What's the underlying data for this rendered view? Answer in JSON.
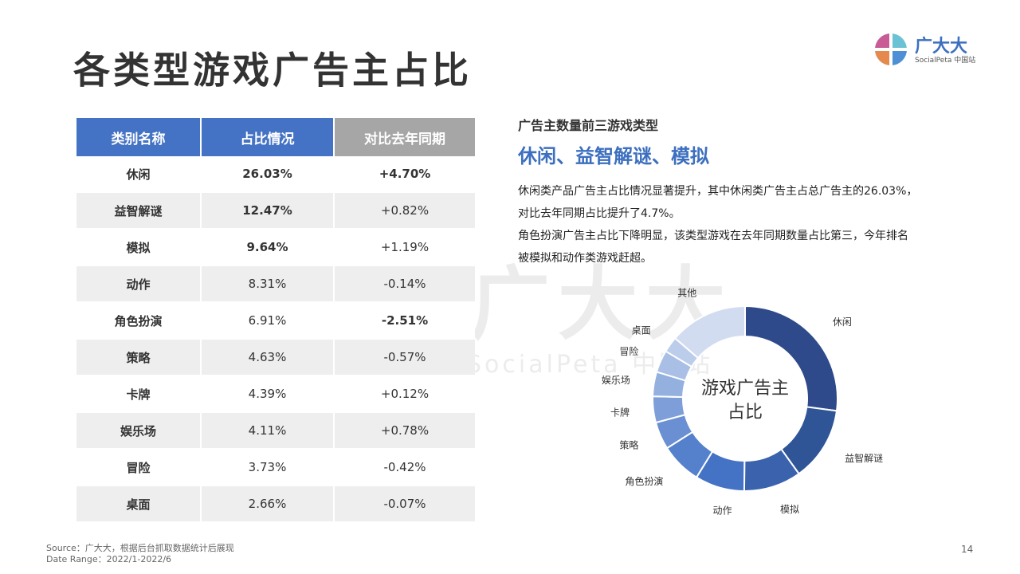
{
  "title": "各类型游戏广告主占比",
  "logo": {
    "name": "广大大",
    "sub": "SocialPeta 中国站"
  },
  "watermark": {
    "big": "广大大",
    "small": "SocialPeta 中国站"
  },
  "table": {
    "headers": [
      "类别名称",
      "占比情况",
      "对比去年同期"
    ],
    "rows": [
      {
        "name": "休闲",
        "share": "26.03%",
        "change": "+4.70%"
      },
      {
        "name": "益智解谜",
        "share": "12.47%",
        "change": "+0.82%"
      },
      {
        "name": "模拟",
        "share": "9.64%",
        "change": "+1.19%"
      },
      {
        "name": "动作",
        "share": "8.31%",
        "change": "-0.14%"
      },
      {
        "name": "角色扮演",
        "share": "6.91%",
        "change": "-2.51%"
      },
      {
        "name": "策略",
        "share": "4.63%",
        "change": "-0.57%"
      },
      {
        "name": "卡牌",
        "share": "4.39%",
        "change": "+0.12%"
      },
      {
        "name": "娱乐场",
        "share": "4.11%",
        "change": "+0.78%"
      },
      {
        "name": "冒险",
        "share": "3.73%",
        "change": "-0.42%"
      },
      {
        "name": "桌面",
        "share": "2.66%",
        "change": "-0.07%"
      }
    ]
  },
  "right": {
    "subtitle": "广告主数量前三游戏类型",
    "headline": "休闲、益智解谜、模拟",
    "lines": [
      "休闲类产品广告主占比情况显著提升，其中休闲类广告主占总广告主的26.03%，",
      "对比去年同期占比提升了4.7%。",
      "角色扮演广告主占比下降明显，该类型游戏在去年同期数量占比第三，今年排名",
      "被模拟和动作类游戏赶超。"
    ]
  },
  "chart_data": {
    "type": "pie",
    "donut": true,
    "center_label_lines": [
      "游戏广告主",
      "占比"
    ],
    "categories": [
      "休闲",
      "益智解谜",
      "模拟",
      "动作",
      "角色扮演",
      "策略",
      "卡牌",
      "娱乐场",
      "冒险",
      "桌面",
      "其他"
    ],
    "values": [
      26.03,
      12.47,
      9.64,
      8.31,
      6.91,
      4.63,
      4.39,
      4.11,
      3.73,
      2.66,
      13.12
    ],
    "colors": [
      "#2e4a8a",
      "#2f5597",
      "#3a62ad",
      "#4472c4",
      "#5580cc",
      "#6a8fd2",
      "#7d9ed8",
      "#93b0df",
      "#a9bfe5",
      "#bccdeb",
      "#d2dcf1"
    ],
    "label_side": [
      "right",
      "right",
      "right",
      "right",
      "left",
      "left",
      "left",
      "left",
      "left",
      "left",
      "left"
    ]
  },
  "footer": {
    "source": "Source：广大大，根据后台抓取数据统计后展现",
    "range": "Date Range：2022/1-2022/6"
  },
  "page_number": "14"
}
